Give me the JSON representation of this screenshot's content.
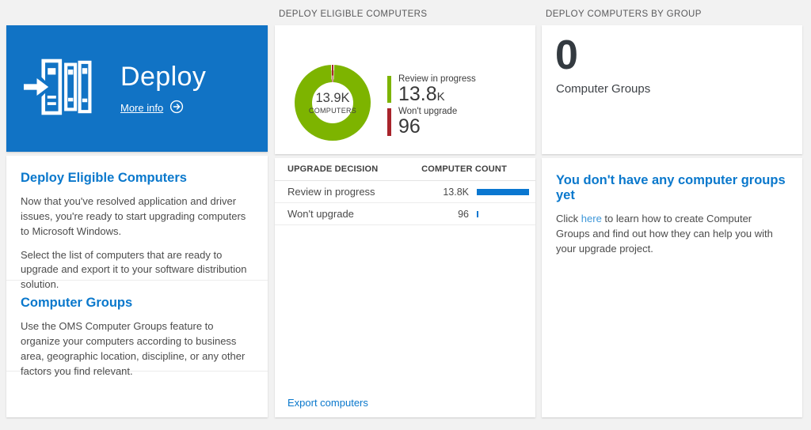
{
  "ui": {
    "left": {
      "tile": {
        "title": "Deploy",
        "more_info_label": "More info"
      },
      "sections": [
        {
          "heading": "Deploy Eligible Computers",
          "paragraphs": [
            "Now that you've resolved application and driver issues, you're ready to start upgrading computers to Microsoft Windows.",
            "Select the list of computers that are ready to upgrade and export it to your software distribution solution."
          ]
        },
        {
          "heading": "Computer Groups",
          "paragraphs": [
            "Use the OMS Computer Groups feature to organize your computers according to business area, geographic location, discipline, or any other factors you find relevant."
          ]
        }
      ]
    },
    "middle": {
      "header": "DEPLOY ELIGIBLE COMPUTERS",
      "export_link": "Export computers"
    },
    "right": {
      "header": "DEPLOY COMPUTERS BY GROUP",
      "tile": {
        "value": "0",
        "label": "Computer Groups"
      },
      "empty_state": {
        "heading": "You don't have any computer groups yet",
        "text_before_link": "Click ",
        "link_label": "here",
        "text_after_link": " to learn how to create Computer Groups and find out how they can help you with your upgrade project."
      }
    },
    "colors": {
      "tile_blue": "#1173c5",
      "heading_blue": "#0a78cc",
      "link_light_blue": "#3d97d9",
      "bar_blue": "#0a77d0",
      "donut_green": "#7db400",
      "donut_red": "#a8242b"
    }
  },
  "chart_data": [
    {
      "type": "pie",
      "subtype": "donut",
      "title": "DEPLOY ELIGIBLE COMPUTERS",
      "center_value": "13.9K",
      "center_label": "COMPUTERS",
      "slices": [
        {
          "label": "Review in progress",
          "value": 13800,
          "display_value": "13.8",
          "display_suffix": "K",
          "color": "#7db400"
        },
        {
          "label": "Won't upgrade",
          "value": 96,
          "display_value": "96",
          "display_suffix": "",
          "color": "#a8242b"
        }
      ],
      "legend_position": "right"
    },
    {
      "type": "table",
      "columns": [
        "UPGRADE DECISION",
        "COMPUTER COUNT"
      ],
      "rows": [
        {
          "label": "Review in progress",
          "count": 13800,
          "display": "13.8K",
          "bar_pct": 100
        },
        {
          "label": "Won't upgrade",
          "count": 96,
          "display": "96",
          "bar_pct": 1
        }
      ],
      "bar_color": "#0a77d0"
    }
  ]
}
